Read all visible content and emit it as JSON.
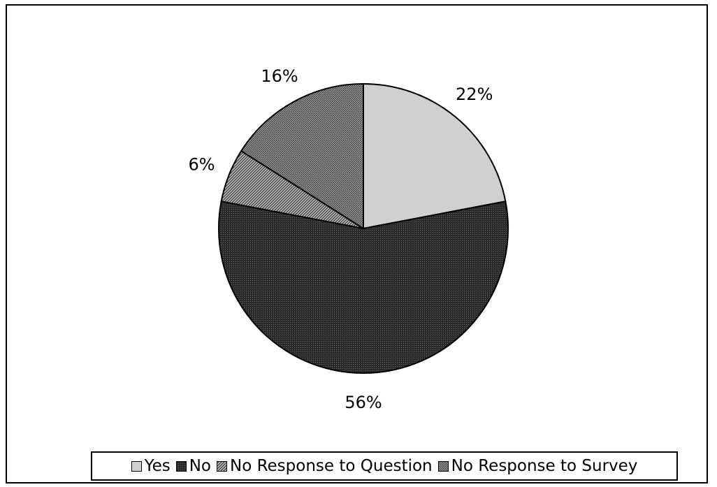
{
  "chart_data": {
    "type": "pie",
    "title": "",
    "slices": [
      {
        "label": "Yes",
        "value": 22,
        "display": "22%",
        "color": "#d0d0d0",
        "pattern": "solid"
      },
      {
        "label": "No",
        "value": 56,
        "display": "56%",
        "color": "#333333",
        "pattern": "dense-dots"
      },
      {
        "label": "No Response to Question",
        "value": 6,
        "display": "6%",
        "color": "#8a8a8a",
        "pattern": "diagonal-hatch"
      },
      {
        "label": "No Response to Survey",
        "value": 16,
        "display": "16%",
        "color": "#777777",
        "pattern": "fine-hatch"
      }
    ],
    "legend_placement": "bottom",
    "start": "12 o'clock",
    "direction": "clockwise"
  }
}
